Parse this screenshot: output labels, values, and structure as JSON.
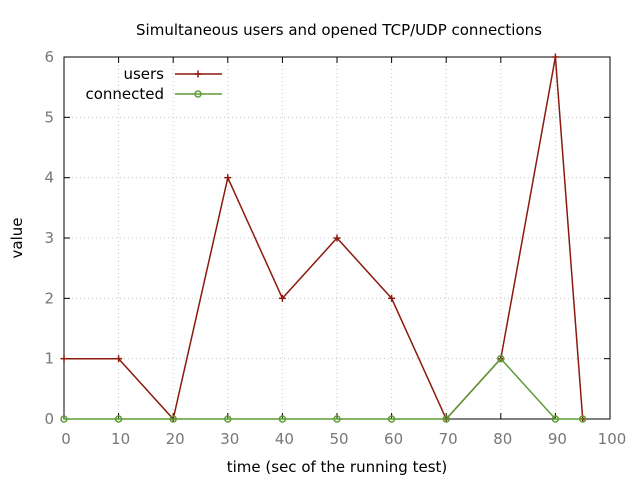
{
  "chart_data": {
    "type": "line",
    "title": "Simultaneous users and opened TCP/UDP connections",
    "xlabel": "time (sec of the running test)",
    "ylabel": "value",
    "xlim": [
      0,
      100
    ],
    "ylim": [
      0,
      6
    ],
    "xticks": [
      "0",
      "10",
      "20",
      "30",
      "40",
      "50",
      "60",
      "70",
      "80",
      "90",
      "100"
    ],
    "yticks": [
      "0",
      "1",
      "2",
      "3",
      "4",
      "5",
      "6"
    ],
    "grid": true,
    "legend_position": "top-left",
    "x": [
      0,
      10,
      20,
      30,
      40,
      50,
      60,
      70,
      80,
      90,
      95
    ],
    "series": [
      {
        "name": "users",
        "color": "#8b1a0e",
        "marker": "plus",
        "values": [
          1,
          1,
          0,
          4,
          2,
          3,
          2,
          0,
          1,
          6,
          0
        ]
      },
      {
        "name": "connected",
        "color": "#5e9c36",
        "marker": "circle",
        "values": [
          0,
          0,
          0,
          0,
          0,
          0,
          0,
          0,
          1,
          0,
          0
        ]
      }
    ]
  }
}
